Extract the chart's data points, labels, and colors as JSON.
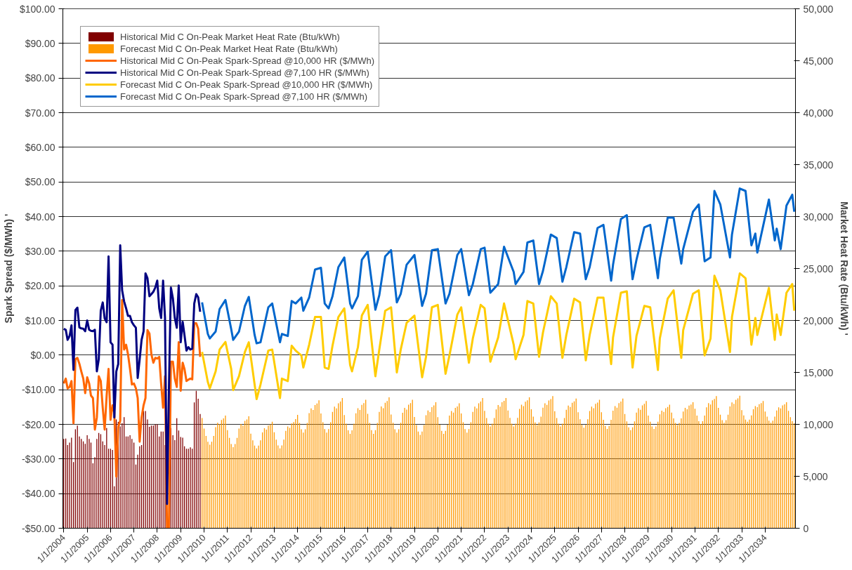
{
  "chart_data": {
    "type": "bar",
    "ylabel": "Spark Spread ($/MWh) '",
    "y2label": "Market Heat Rate (Btu/kWh) '",
    "xlim": [
      "2003-12-18",
      "2035-04-20"
    ],
    "xticks": [
      {
        "value": "2004-01-01",
        "label": "1/1/2004"
      },
      {
        "value": "2005-01-01",
        "label": "1/1/2005"
      },
      {
        "value": "2006-01-01",
        "label": "1/1/2006"
      },
      {
        "value": "2007-01-01",
        "label": "1/1/2007"
      },
      {
        "value": "2008-01-01",
        "label": "1/1/2008"
      },
      {
        "value": "2009-01-01",
        "label": "1/1/2009"
      },
      {
        "value": "2010-01-01",
        "label": "1/1/2010"
      },
      {
        "value": "2011-01-01",
        "label": "1/1/2011"
      },
      {
        "value": "2012-01-01",
        "label": "1/1/2012"
      },
      {
        "value": "2013-01-01",
        "label": "1/1/2013"
      },
      {
        "value": "2014-01-01",
        "label": "1/1/2014"
      },
      {
        "value": "2015-01-01",
        "label": "1/1/2015"
      },
      {
        "value": "2016-01-01",
        "label": "1/1/2016"
      },
      {
        "value": "2017-01-01",
        "label": "1/1/2017"
      },
      {
        "value": "2018-01-01",
        "label": "1/1/2018"
      },
      {
        "value": "2019-01-01",
        "label": "1/1/2019"
      },
      {
        "value": "2020-01-01",
        "label": "1/1/2020"
      },
      {
        "value": "2021-01-01",
        "label": "1/1/2021"
      },
      {
        "value": "2022-01-01",
        "label": "1/1/2022"
      },
      {
        "value": "2023-01-01",
        "label": "1/1/2023"
      },
      {
        "value": "2024-01-01",
        "label": "1/1/2024"
      },
      {
        "value": "2025-01-01",
        "label": "1/1/2025"
      },
      {
        "value": "2026-01-01",
        "label": "1/1/2026"
      },
      {
        "value": "2027-01-01",
        "label": "1/1/2027"
      },
      {
        "value": "2028-01-01",
        "label": "1/1/2028"
      },
      {
        "value": "2029-01-01",
        "label": "1/1/2029"
      },
      {
        "value": "2030-01-01",
        "label": "1/1/2030"
      },
      {
        "value": "2031-01-01",
        "label": "1/1/2031"
      },
      {
        "value": "2032-01-01",
        "label": "1/1/2032"
      },
      {
        "value": "2033-01-01",
        "label": "1/1/2033"
      },
      {
        "value": "2034-01-01",
        "label": "1/1/2034"
      }
    ],
    "ylim": [
      -50,
      100
    ],
    "yticks": [
      {
        "value": -50,
        "label": "-$50.00"
      },
      {
        "value": -40,
        "label": "-$40.00"
      },
      {
        "value": -30,
        "label": "-$30.00"
      },
      {
        "value": -20,
        "label": "-$20.00"
      },
      {
        "value": -10,
        "label": "-$10.00"
      },
      {
        "value": 0,
        "label": "$0.00"
      },
      {
        "value": 10,
        "label": "$10.00"
      },
      {
        "value": 20,
        "label": "$20.00"
      },
      {
        "value": 30,
        "label": "$30.00"
      },
      {
        "value": 40,
        "label": "$40.00"
      },
      {
        "value": 50,
        "label": "$50.00"
      },
      {
        "value": 60,
        "label": "$60.00"
      },
      {
        "value": 70,
        "label": "$70.00"
      },
      {
        "value": 80,
        "label": "$80.00"
      },
      {
        "value": 90,
        "label": "$90.00"
      },
      {
        "value": 100,
        "label": "$100.00"
      }
    ],
    "y2lim": [
      0,
      50000
    ],
    "y2ticks": [
      0,
      {
        "value": 5000,
        "label": "5,000"
      },
      {
        "value": 10000,
        "label": "10,000"
      },
      {
        "value": 15000,
        "label": "15,000"
      },
      {
        "value": 20000,
        "label": "20,000"
      },
      {
        "value": 25000,
        "label": "25,000"
      },
      {
        "value": 30000,
        "label": "30,000"
      },
      {
        "value": 35000,
        "label": "35,000"
      },
      {
        "value": 40000,
        "label": "40,000"
      },
      {
        "value": 45000,
        "label": "45,000"
      },
      {
        "value": 50000,
        "label": "50,000"
      }
    ],
    "grid": "y",
    "legend": "top left",
    "series": [
      {
        "name": "Historical Mid C On-Peak Market Heat Rate (Btu/kWh)",
        "axis": "y2",
        "color": "#800000",
        "x": [
          "2004-01",
          "2004-02",
          "2004-03",
          "2004-04",
          "2004-05",
          "2004-06",
          "2004-07",
          "2004-08",
          "2004-09",
          "2004-10",
          "2004-11",
          "2004-12",
          "2005-01",
          "2005-02",
          "2005-03",
          "2005-04",
          "2005-05",
          "2005-06",
          "2005-07",
          "2005-08",
          "2005-09",
          "2005-10",
          "2005-11",
          "2005-12",
          "2006-01",
          "2006-02",
          "2006-03",
          "2006-04",
          "2006-05",
          "2006-06",
          "2006-07",
          "2006-08",
          "2006-09",
          "2006-10",
          "2006-11",
          "2006-12",
          "2007-01",
          "2007-02",
          "2007-03",
          "2007-04",
          "2007-05",
          "2007-06",
          "2007-07",
          "2007-08",
          "2007-09",
          "2007-10",
          "2007-11",
          "2007-12",
          "2008-01",
          "2008-02",
          "2008-03",
          "2008-04",
          "2008-05",
          "2008-06",
          "2008-07",
          "2008-08",
          "2008-09",
          "2008-10",
          "2008-11",
          "2008-12",
          "2009-01",
          "2009-02",
          "2009-03",
          "2009-04",
          "2009-05",
          "2009-06",
          "2009-07",
          "2009-08",
          "2009-09",
          "2009-10",
          "2009-11"
        ],
        "values": [
          8600,
          8640,
          8010,
          8240,
          8710,
          6370,
          9530,
          9880,
          8830,
          8600,
          8360,
          8130,
          8950,
          8600,
          8240,
          6250,
          6840,
          8600,
          9180,
          9060,
          8360,
          8010,
          9650,
          7660,
          7660,
          7540,
          4030,
          10470,
          10230,
          9800,
          10120,
          10700,
          8830,
          8830,
          8950,
          8600,
          8240,
          6140,
          7070,
          7890,
          8010,
          11290,
          11290,
          10470,
          9770,
          9880,
          9880,
          10000,
          10000,
          8830,
          9300,
          9300,
          8000,
          null,
          null,
          9650,
          8950,
          8480,
          10590,
          9410,
          8780,
          8710,
          7890,
          7660,
          7660,
          7780,
          7660,
          12110,
          13230,
          12460,
          11000
        ]
      },
      {
        "name": "Forecast Mid C On-Peak Market Heat Rate (Btu/kWh)",
        "axis": "y2",
        "color": "#ff9900",
        "x": [
          "2009-12",
          "2010-01",
          "2010-02",
          "2010-03",
          "2010-04",
          "2010-05",
          "2010-06",
          "2010-07",
          "2010-08",
          "2010-09",
          "2010-10",
          "2010-11",
          "2010-12",
          "2011-01",
          "2011-02",
          "2011-03",
          "2011-04",
          "2011-05",
          "2011-06",
          "2011-07",
          "2011-08",
          "2011-09",
          "2011-10",
          "2011-11",
          "2011-12",
          "2012-01",
          "2012-02",
          "2012-03",
          "2012-04",
          "2012-05",
          "2012-06",
          "2012-07",
          "2012-08",
          "2012-09",
          "2012-10",
          "2012-11",
          "2012-12",
          "2013-01",
          "2013-02",
          "2013-03",
          "2013-04",
          "2013-05",
          "2013-06",
          "2013-07",
          "2013-08",
          "2013-09",
          "2013-10",
          "2013-11",
          "2013-12",
          "2014-01",
          "2014-02",
          "2014-03",
          "2014-04",
          "2014-05",
          "2014-06",
          "2014-07",
          "2014-08",
          "2014-09",
          "2014-10",
          "2014-11",
          "2014-12",
          "2015-01",
          "2015-02",
          "2015-03",
          "2015-04",
          "2015-05",
          "2015-06",
          "2015-07",
          "2015-08",
          "2015-09",
          "2015-10",
          "2015-11",
          "2015-12",
          "2016-01",
          "2016-02",
          "2016-03",
          "2016-04",
          "2016-05",
          "2016-06",
          "2016-07",
          "2016-08",
          "2016-09",
          "2016-10",
          "2016-11",
          "2016-12",
          "2017-01",
          "2017-02",
          "2017-03",
          "2017-04",
          "2017-05",
          "2017-06",
          "2017-07",
          "2017-08",
          "2017-09",
          "2017-10",
          "2017-11",
          "2017-12",
          "2018-01",
          "2018-02",
          "2018-03",
          "2018-04",
          "2018-05",
          "2018-06",
          "2018-07",
          "2018-08",
          "2018-09",
          "2018-10",
          "2018-11",
          "2018-12",
          "2019-01",
          "2019-02",
          "2019-03",
          "2019-04",
          "2019-05",
          "2019-06",
          "2019-07",
          "2019-08",
          "2019-09",
          "2019-10",
          "2019-11",
          "2019-12",
          "2020-01",
          "2020-02",
          "2020-03",
          "2020-04",
          "2020-05",
          "2020-06",
          "2020-07",
          "2020-08",
          "2020-09",
          "2020-10",
          "2020-11",
          "2020-12",
          "2021-01",
          "2021-02",
          "2021-03",
          "2021-04",
          "2021-05",
          "2021-06",
          "2021-07",
          "2021-08",
          "2021-09",
          "2021-10",
          "2021-11",
          "2021-12",
          "2022-01",
          "2022-02",
          "2022-03",
          "2022-04",
          "2022-05",
          "2022-06",
          "2022-07",
          "2022-08",
          "2022-09",
          "2022-10",
          "2022-11",
          "2022-12",
          "2023-01",
          "2023-02",
          "2023-03",
          "2023-04",
          "2023-05",
          "2023-06",
          "2023-07",
          "2023-08",
          "2023-09",
          "2023-10",
          "2023-11",
          "2023-12",
          "2024-01",
          "2024-02",
          "2024-03",
          "2024-04",
          "2024-05",
          "2024-06",
          "2024-07",
          "2024-08",
          "2024-09",
          "2024-10",
          "2024-11",
          "2024-12",
          "2025-01",
          "2025-02",
          "2025-03",
          "2025-04",
          "2025-05",
          "2025-06",
          "2025-07",
          "2025-08",
          "2025-09",
          "2025-10",
          "2025-11",
          "2025-12",
          "2026-01",
          "2026-02",
          "2026-03",
          "2026-04",
          "2026-05",
          "2026-06",
          "2026-07",
          "2026-08",
          "2026-09",
          "2026-10",
          "2026-11",
          "2026-12",
          "2027-01",
          "2027-02",
          "2027-03",
          "2027-04",
          "2027-05",
          "2027-06",
          "2027-07",
          "2027-08",
          "2027-09",
          "2027-10",
          "2027-11",
          "2027-12",
          "2028-01",
          "2028-02",
          "2028-03",
          "2028-04",
          "2028-05",
          "2028-06",
          "2028-07",
          "2028-08",
          "2028-09",
          "2028-10",
          "2028-11",
          "2028-12",
          "2029-01",
          "2029-02",
          "2029-03",
          "2029-04",
          "2029-05",
          "2029-06",
          "2029-07",
          "2029-08",
          "2029-09",
          "2029-10",
          "2029-11",
          "2029-12",
          "2030-01",
          "2030-02",
          "2030-03",
          "2030-04",
          "2030-05",
          "2030-06",
          "2030-07",
          "2030-08",
          "2030-09",
          "2030-10",
          "2030-11",
          "2030-12",
          "2031-01",
          "2031-02",
          "2031-03",
          "2031-04",
          "2031-05",
          "2031-06",
          "2031-07",
          "2031-08",
          "2031-09",
          "2031-10",
          "2031-11",
          "2031-12",
          "2032-01",
          "2032-02",
          "2032-03",
          "2032-04",
          "2032-05",
          "2032-06",
          "2032-07",
          "2032-08",
          "2032-09",
          "2032-10",
          "2032-11",
          "2032-12",
          "2033-01",
          "2033-02",
          "2033-03",
          "2033-04",
          "2033-05",
          "2033-06",
          "2033-07",
          "2033-08",
          "2033-09",
          "2033-10",
          "2033-11",
          "2033-12",
          "2034-01",
          "2034-02",
          "2034-03",
          "2034-04",
          "2034-05",
          "2034-06",
          "2034-07",
          "2034-08",
          "2034-09",
          "2034-10",
          "2034-11",
          "2034-12",
          "2035-01",
          "2035-02",
          "2035-03",
          "2035-04"
        ],
        "values": [
          10600,
          9590,
          8880,
          8320,
          8040,
          8320,
          8880,
          9730,
          10150,
          10010,
          10430,
          10570,
          10850,
          9440,
          8700,
          8110,
          7810,
          8110,
          8700,
          9590,
          10040,
          9890,
          10340,
          10480,
          10780,
          9100,
          8460,
          7950,
          7690,
          7950,
          8460,
          9230,
          9620,
          9490,
          9880,
          10000,
          10260,
          9240,
          8530,
          7970,
          7690,
          7970,
          8530,
          9380,
          9800,
          9660,
          10080,
          10220,
          10500,
          10920,
          10140,
          9520,
          9210,
          9520,
          10140,
          11080,
          11540,
          11390,
          11850,
          12010,
          12320,
          11040,
          10210,
          9540,
          9210,
          9540,
          10210,
          11200,
          11700,
          11530,
          12030,
          12200,
          12530,
          10890,
          10070,
          9420,
          9090,
          9420,
          10070,
          11060,
          11550,
          11390,
          11880,
          12040,
          12370,
          11020,
          10140,
          9440,
          9090,
          9440,
          10140,
          11200,
          11720,
          11550,
          12070,
          12250,
          12600,
          10950,
          10160,
          9530,
          9210,
          9530,
          10160,
          11110,
          11580,
          11420,
          11900,
          12050,
          12370,
          10710,
          9930,
          9300,
          8980,
          9300,
          9930,
          10870,
          11340,
          11190,
          11660,
          11820,
          12130,
          10700,
          9970,
          9380,
          9090,
          9380,
          9970,
          10850,
          11290,
          11140,
          11580,
          11730,
          12020,
          11040,
          10210,
          9540,
          9210,
          9540,
          10210,
          11200,
          11700,
          11530,
          12030,
          12200,
          12530,
          11300,
          10610,
          10060,
          9790,
          10060,
          10610,
          11430,
          11850,
          11710,
          12120,
          12260,
          12530,
          11340,
          10630,
          10070,
          9790,
          10070,
          10630,
          11480,
          11900,
          11760,
          12180,
          12320,
          12600,
          11460,
          10750,
          10190,
          9910,
          10190,
          10750,
          11600,
          12020,
          11880,
          12300,
          12440,
          12720,
          11270,
          10600,
          10060,
          9790,
          10060,
          10600,
          11400,
          11810,
          11670,
          12080,
          12210,
          12480,
          11160,
          10490,
          9950,
          9680,
          9950,
          10490,
          11290,
          11700,
          11560,
          11970,
          12100,
          12370,
          11170,
          10440,
          9850,
          9560,
          9850,
          10440,
          11310,
          11750,
          11600,
          12040,
          12190,
          12480,
          10990,
          10280,
          9720,
          9440,
          9720,
          10280,
          11130,
          11550,
          11410,
          11830,
          11970,
          12250,
          10850,
          10260,
          9790,
          9560,
          9790,
          10260,
          10960,
          11320,
          11200,
          11550,
          11670,
          11900,
          11130,
          10580,
          10130,
          9910,
          10130,
          10580,
          11240,
          11580,
          11460,
          11800,
          11910,
          12130,
          11510,
          10840,
          10300,
          10030,
          10300,
          10840,
          11640,
          12050,
          11910,
          12320,
          12450,
          12720,
          11590,
          10930,
          10410,
          10150,
          10410,
          10930,
          11720,
          12110,
          11980,
          12370,
          12500,
          12760,
          11360,
          10860,
          10460,
          10260,
          10460,
          10860,
          11450,
          11750,
          11650,
          11950,
          12050,
          12250,
          11240,
          10740,
          10350,
          10150,
          10350,
          10740,
          11340,
          11640,
          11540,
          11830,
          11930,
          12130,
          11300,
          10700,
          10300,
          10100
        ]
      },
      {
        "name": "Historical Mid C On-Peak Spark-Spread @10,000 HR ($/MWh)",
        "type": "line",
        "color": "#ff6600",
        "x": [
          "2004-01",
          "2004-02",
          "2004-03",
          "2004-04",
          "2004-05",
          "2004-06",
          "2004-07",
          "2004-08",
          "2004-09",
          "2004-10",
          "2004-11",
          "2004-12",
          "2005-01",
          "2005-02",
          "2005-03",
          "2005-04",
          "2005-05",
          "2005-06",
          "2005-07",
          "2005-08",
          "2005-09",
          "2005-10",
          "2005-11",
          "2005-12",
          "2006-01",
          "2006-02",
          "2006-03",
          "2006-04",
          "2006-05",
          "2006-06",
          "2006-07",
          "2006-08",
          "2006-09",
          "2006-10",
          "2006-11",
          "2006-12",
          "2007-01",
          "2007-02",
          "2007-03",
          "2007-04",
          "2007-05",
          "2007-06",
          "2007-07",
          "2007-08",
          "2007-09",
          "2007-10",
          "2007-11",
          "2007-12",
          "2008-01",
          "2008-02",
          "2008-03",
          "2008-04",
          "2008-05",
          "2008-06",
          "2008-07",
          "2008-08",
          "2008-09",
          "2008-10",
          "2008-11",
          "2008-12",
          "2009-01",
          "2009-02",
          "2009-03",
          "2009-04",
          "2009-05",
          "2009-06",
          "2009-07",
          "2009-08",
          "2009-09",
          "2009-10",
          "2009-11"
        ],
        "values": [
          -8.2,
          -6.8,
          -9.6,
          -9.2,
          -7.5,
          -19.7,
          -1.2,
          -0.8,
          -2.5,
          -4.7,
          -6.8,
          -11.0,
          -6.4,
          -8.2,
          -11.7,
          -12.4,
          -21.5,
          -18.0,
          -6.1,
          -7.5,
          -15.2,
          -21.5,
          -11.7,
          -4.0,
          -18.7,
          -14.5,
          -16.6,
          -35.1,
          -20.8,
          -19.0,
          15.9,
          1.6,
          3.0,
          0.2,
          -4.0,
          -8.5,
          -8.2,
          -9.6,
          -12.4,
          -25.0,
          -18.0,
          -14.5,
          -12.4,
          7.2,
          6.2,
          0.2,
          -2.2,
          -0.8,
          -1.0,
          -0.5,
          -8.2,
          -15.2,
          -6.1,
          -50,
          -50,
          -1.9,
          -1.9,
          -6.8,
          -9.2,
          3.7,
          -10.3,
          -2.2,
          -4.0,
          -7.5,
          -7.1,
          -6.8,
          -7.0,
          9.2,
          9.2,
          7.6,
          -0.5
        ]
      },
      {
        "name": "Historical Mid C On-Peak Spark-Spread @7,100 HR ($/MWh)",
        "type": "line",
        "color": "#000080",
        "x": [
          "2004-01",
          "2004-02",
          "2004-03",
          "2004-04",
          "2004-05",
          "2004-06",
          "2004-07",
          "2004-08",
          "2004-09",
          "2004-10",
          "2004-11",
          "2004-12",
          "2005-01",
          "2005-02",
          "2005-03",
          "2005-04",
          "2005-05",
          "2005-06",
          "2005-07",
          "2005-08",
          "2005-09",
          "2005-10",
          "2005-11",
          "2005-12",
          "2006-01",
          "2006-02",
          "2006-03",
          "2006-04",
          "2006-05",
          "2006-06",
          "2006-07",
          "2006-08",
          "2006-09",
          "2006-10",
          "2006-11",
          "2006-12",
          "2007-01",
          "2007-02",
          "2007-03",
          "2007-04",
          "2007-05",
          "2007-06",
          "2007-07",
          "2007-08",
          "2007-09",
          "2007-10",
          "2007-11",
          "2007-12",
          "2008-01",
          "2008-02",
          "2008-03",
          "2008-04",
          "2008-05",
          "2008-06",
          "2008-07",
          "2008-08",
          "2008-09",
          "2008-10",
          "2008-11",
          "2008-12",
          "2009-01",
          "2009-02",
          "2009-03",
          "2009-04",
          "2009-05",
          "2009-06",
          "2009-07",
          "2009-08",
          "2009-09",
          "2009-10",
          "2009-11"
        ],
        "values": [
          7.6,
          7.3,
          4.4,
          5.5,
          8.6,
          -4.3,
          13.0,
          13.7,
          8.0,
          7.7,
          7.6,
          6.9,
          10.0,
          7.3,
          7.0,
          6.9,
          7.3,
          -4.7,
          -1.2,
          12.8,
          15.2,
          10.6,
          9.5,
          28.5,
          3.7,
          3.0,
          -18.0,
          -4.7,
          -2.6,
          31.7,
          18.7,
          15.5,
          13.5,
          11.3,
          11.3,
          9.5,
          8.6,
          7.9,
          -6.6,
          -1.2,
          4.4,
          6.9,
          23.6,
          22.2,
          17.0,
          17.6,
          18.3,
          19.5,
          21.5,
          13.5,
          10.7,
          21.5,
          10.7,
          -43.0,
          -9.6,
          19.5,
          16.4,
          10.7,
          7.9,
          20.1,
          3.7,
          9.6,
          5.8,
          1.3,
          2.3,
          1.6,
          1.8,
          14.9,
          17.6,
          16.7,
          12.5
        ]
      },
      {
        "name": "Forecast Mid C On-Peak Spark-Spread @10,000 HR ($/MWh)",
        "type": "line",
        "color": "#ffcc00",
        "x": [
          "2009-12",
          "2010-03",
          "2010-04",
          "2010-07",
          "2010-09",
          "2010-12",
          "2011-03",
          "2011-04",
          "2011-07",
          "2011-10",
          "2011-12",
          "2012-03",
          "2012-04",
          "2012-06",
          "2012-10",
          "2012-12",
          "2013-04",
          "2013-05",
          "2013-08",
          "2013-10",
          "2013-12",
          "2014-03",
          "2014-04",
          "2014-07",
          "2014-10",
          "2015-01",
          "2015-03",
          "2015-05",
          "2015-07",
          "2015-10",
          "2016-01",
          "2016-04",
          "2016-05",
          "2016-08",
          "2016-10",
          "2017-01",
          "2017-05",
          "2017-07",
          "2017-10",
          "2018-01",
          "2018-04",
          "2018-06",
          "2018-09",
          "2019-01",
          "2019-05",
          "2019-07",
          "2019-10",
          "2020-01",
          "2020-05",
          "2020-07",
          "2020-11",
          "2021-01",
          "2021-05",
          "2021-07",
          "2021-11",
          "2022-01",
          "2022-04",
          "2022-08",
          "2022-11",
          "2023-04",
          "2023-05",
          "2023-09",
          "2023-11",
          "2024-02",
          "2024-05",
          "2024-07",
          "2024-11",
          "2025-02",
          "2025-05",
          "2025-07",
          "2025-11",
          "2026-02",
          "2026-05",
          "2026-07",
          "2026-11",
          "2027-02",
          "2027-06",
          "2027-07",
          "2027-11",
          "2028-02",
          "2028-05",
          "2028-07",
          "2028-11",
          "2029-02",
          "2029-06",
          "2029-07",
          "2029-11",
          "2030-02",
          "2030-06",
          "2030-07",
          "2030-12",
          "2031-03",
          "2031-06",
          "2031-09",
          "2031-11",
          "2032-02",
          "2032-07",
          "2032-08",
          "2032-12",
          "2033-03",
          "2033-06",
          "2033-08",
          "2033-09",
          "2034-03",
          "2034-06",
          "2034-07",
          "2034-09",
          "2034-12",
          "2035-03",
          "2035-04"
        ],
        "values": [
          0.9,
          -7.8,
          -9.6,
          -4.7,
          1.6,
          3.8,
          -4.0,
          -10.1,
          -6.1,
          0.9,
          3.7,
          -8.5,
          -12.7,
          -8.5,
          1.3,
          1.6,
          -12.4,
          -6.8,
          -7.5,
          2.7,
          1.3,
          -0.1,
          -3.6,
          3.0,
          11.0,
          11.0,
          -3.6,
          -4.0,
          2.7,
          11.0,
          13.5,
          -2.9,
          -4.7,
          2.3,
          11.4,
          14.5,
          -6.1,
          1.6,
          12.8,
          13.8,
          -5.0,
          1.6,
          9.3,
          11.4,
          -6.4,
          -0.5,
          13.8,
          14.5,
          -5.4,
          -0.1,
          11.7,
          13.8,
          -2.2,
          4.8,
          14.5,
          13.5,
          -1.9,
          5.1,
          14.9,
          3.0,
          -1.2,
          5.8,
          15.6,
          14.9,
          -0.5,
          6.5,
          17.0,
          14.9,
          -0.8,
          5.8,
          16.3,
          15.2,
          -1.5,
          5.8,
          16.6,
          16.6,
          -2.6,
          5.1,
          18.0,
          18.4,
          -3.6,
          5.5,
          14.2,
          13.8,
          -4.3,
          4.8,
          16.3,
          18.7,
          -0.8,
          7.2,
          17.7,
          18.7,
          -0.1,
          4.8,
          22.9,
          18.7,
          0.9,
          11.0,
          23.6,
          22.2,
          3.0,
          10.7,
          5.8,
          19.4,
          4.4,
          11.7,
          5.8,
          18.0,
          20.5,
          12.8
        ]
      },
      {
        "name": "Forecast Mid C On-Peak Spark-Spread @7,100 HR ($/MWh)",
        "type": "line",
        "color": "#0066cc",
        "x": [
          "2009-12",
          "2010-03",
          "2010-04",
          "2010-07",
          "2010-09",
          "2010-12",
          "2011-03",
          "2011-04",
          "2011-07",
          "2011-10",
          "2011-12",
          "2012-03",
          "2012-04",
          "2012-06",
          "2012-10",
          "2012-12",
          "2013-04",
          "2013-05",
          "2013-08",
          "2013-10",
          "2013-12",
          "2014-03",
          "2014-04",
          "2014-07",
          "2014-10",
          "2015-01",
          "2015-03",
          "2015-05",
          "2015-07",
          "2015-10",
          "2016-01",
          "2016-04",
          "2016-05",
          "2016-08",
          "2016-10",
          "2017-01",
          "2017-05",
          "2017-07",
          "2017-10",
          "2018-01",
          "2018-04",
          "2018-06",
          "2018-09",
          "2019-01",
          "2019-05",
          "2019-07",
          "2019-10",
          "2020-01",
          "2020-05",
          "2020-07",
          "2020-11",
          "2021-01",
          "2021-05",
          "2021-07",
          "2021-11",
          "2022-01",
          "2022-04",
          "2022-08",
          "2022-11",
          "2023-04",
          "2023-05",
          "2023-09",
          "2023-11",
          "2024-02",
          "2024-05",
          "2024-07",
          "2024-11",
          "2025-02",
          "2025-05",
          "2025-07",
          "2025-11",
          "2026-02",
          "2026-05",
          "2026-07",
          "2026-11",
          "2027-02",
          "2027-06",
          "2027-07",
          "2027-11",
          "2028-02",
          "2028-05",
          "2028-07",
          "2028-11",
          "2029-02",
          "2029-06",
          "2029-07",
          "2029-11",
          "2030-02",
          "2030-06",
          "2030-07",
          "2030-12",
          "2031-03",
          "2031-06",
          "2031-09",
          "2031-11",
          "2032-02",
          "2032-07",
          "2032-08",
          "2032-12",
          "2033-03",
          "2033-06",
          "2033-08",
          "2033-09",
          "2034-03",
          "2034-06",
          "2034-07",
          "2034-09",
          "2034-12",
          "2035-03",
          "2035-04"
        ],
        "values": [
          15.2,
          6.1,
          4.8,
          6.8,
          13.3,
          15.9,
          7.5,
          4.4,
          6.8,
          14.2,
          16.8,
          5.8,
          3.4,
          3.7,
          13.8,
          14.9,
          3.7,
          6.1,
          5.5,
          15.6,
          14.9,
          16.6,
          12.8,
          16.6,
          24.7,
          25.2,
          14.9,
          13.5,
          17.0,
          25.4,
          28.2,
          14.9,
          13.5,
          17.0,
          27.5,
          29.9,
          13.1,
          17.3,
          28.5,
          30.3,
          15.2,
          17.7,
          26.1,
          28.9,
          14.2,
          17.7,
          30.3,
          30.6,
          14.9,
          17.7,
          28.9,
          30.6,
          17.3,
          20.5,
          30.6,
          31.0,
          18.0,
          20.5,
          31.3,
          24.0,
          20.5,
          24.0,
          32.5,
          33.1,
          20.5,
          24.3,
          34.8,
          33.8,
          21.2,
          25.4,
          35.5,
          35.1,
          21.9,
          25.4,
          36.7,
          37.6,
          21.5,
          26.1,
          39.3,
          40.4,
          21.9,
          27.5,
          36.9,
          37.6,
          22.2,
          27.8,
          39.7,
          39.7,
          26.4,
          30.6,
          41.4,
          43.5,
          27.1,
          28.2,
          47.4,
          43.5,
          28.2,
          34.8,
          48.1,
          47.4,
          31.7,
          35.1,
          29.6,
          44.9,
          33.1,
          36.5,
          30.6,
          43.2,
          46.3,
          41.4
        ]
      }
    ]
  }
}
